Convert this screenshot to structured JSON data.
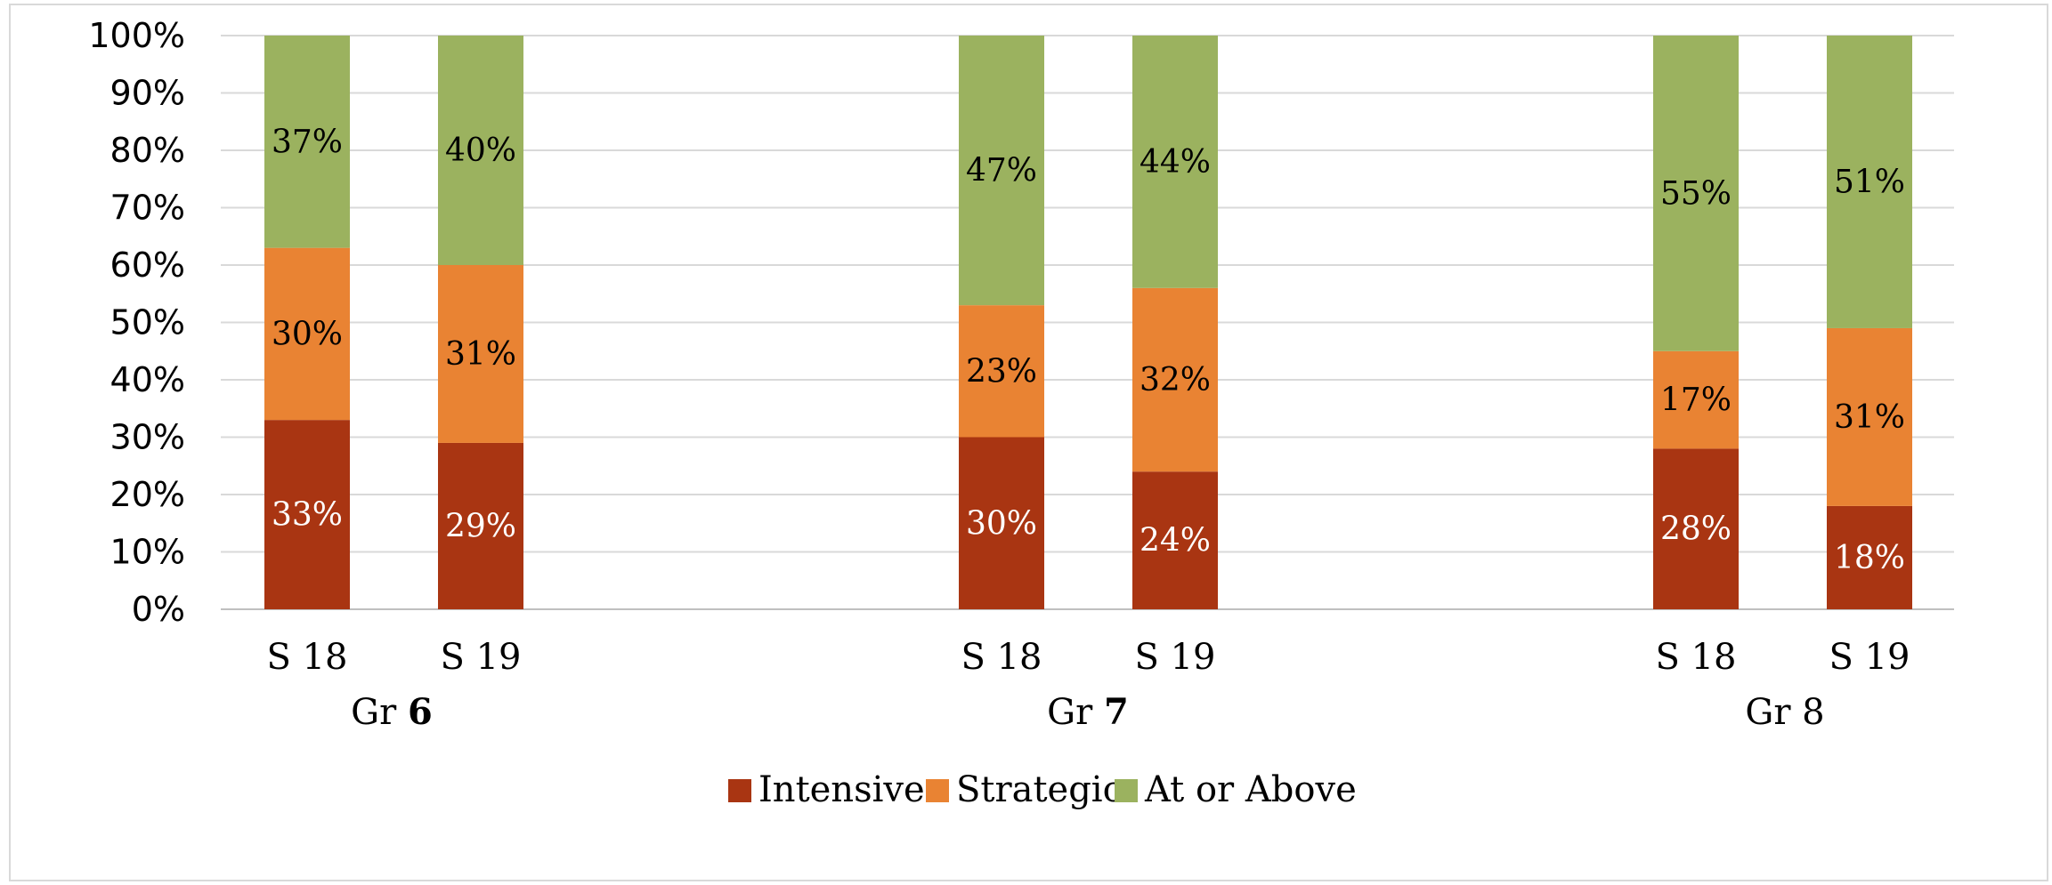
{
  "chart_data": {
    "type": "bar",
    "stacked": true,
    "percent": true,
    "ylim": [
      0,
      100
    ],
    "yticks": [
      "0%",
      "10%",
      "20%",
      "30%",
      "40%",
      "50%",
      "60%",
      "70%",
      "80%",
      "90%",
      "100%"
    ],
    "grid": true,
    "legend_position": "bottom",
    "groups": [
      {
        "name_prefix": "Gr ",
        "name_emphasis": "6",
        "bold": true,
        "categories": [
          "S 18",
          "S 19"
        ]
      },
      {
        "name_prefix": "Gr ",
        "name_emphasis": "7",
        "bold": true,
        "categories": [
          "S 18",
          "S 19"
        ]
      },
      {
        "name_prefix": "Gr ",
        "name_emphasis": "8",
        "bold": false,
        "categories": [
          "S 18",
          "S 19"
        ]
      }
    ],
    "series": [
      {
        "name": "Intensive",
        "color": "#a93512",
        "label_color": "#ffffff",
        "values": [
          33,
          29,
          30,
          24,
          28,
          18
        ],
        "labels": [
          "33%",
          "29%",
          "30%",
          "24%",
          "28%",
          "18%"
        ]
      },
      {
        "name": "Strategic",
        "color": "#e98333",
        "label_color": "#000000",
        "values": [
          30,
          31,
          23,
          32,
          17,
          31
        ],
        "labels": [
          "30%",
          "31%",
          "23%",
          "32%",
          "17%",
          "31%"
        ]
      },
      {
        "name": "At or Above",
        "color": "#9bb25f",
        "label_color": "#000000",
        "values": [
          37,
          40,
          47,
          44,
          55,
          51
        ],
        "labels": [
          "37%",
          "40%",
          "47%",
          "44%",
          "55%",
          "51%"
        ]
      }
    ]
  }
}
